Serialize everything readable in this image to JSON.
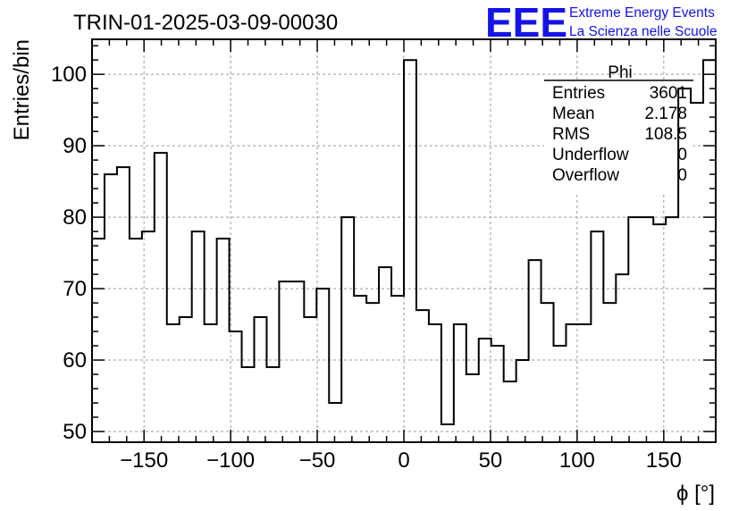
{
  "chart_data": {
    "type": "histogram",
    "title": "TRIN-01-2025-03-09-00030",
    "xlabel": "ϕ [°]",
    "ylabel": "Entries/bin",
    "xlim": [
      -180,
      180
    ],
    "ylim": [
      48.5,
      104.9
    ],
    "grid": true,
    "bin_width": 7.2,
    "x_ticks": [
      -150,
      -100,
      -50,
      0,
      50,
      100,
      150
    ],
    "x_tick_labels": [
      "−150",
      "−100",
      "−50",
      "0",
      "50",
      "100",
      "150"
    ],
    "y_ticks": [
      50,
      60,
      70,
      80,
      90,
      100
    ],
    "y_tick_labels": [
      "50",
      "60",
      "70",
      "80",
      "90",
      "100"
    ],
    "values": [
      77,
      86,
      87,
      77,
      78,
      89,
      65,
      66,
      78,
      65,
      77,
      64,
      59,
      66,
      59,
      71,
      71,
      66,
      70,
      54,
      80,
      69,
      68,
      73,
      69,
      102,
      67,
      65,
      51,
      65,
      58,
      63,
      62,
      57,
      60,
      74,
      68,
      62,
      65,
      65,
      78,
      68,
      72,
      80,
      80,
      79,
      80,
      98,
      96,
      102
    ],
    "stats": {
      "name": "Phi",
      "rows": [
        {
          "label": "Entries",
          "value": "3601"
        },
        {
          "label": "Mean",
          "value": "2.178"
        },
        {
          "label": "RMS",
          "value": "108.5"
        },
        {
          "label": "Underflow",
          "value": "0"
        },
        {
          "label": "Overflow",
          "value": "0"
        }
      ]
    },
    "colors": {
      "line": "#000000",
      "grid": "#9a9a9a",
      "brand": "#1414e6"
    }
  },
  "logo": {
    "text": "EEE",
    "line1": "Extreme Energy Events",
    "line2": "La Scienza nelle Scuole"
  }
}
